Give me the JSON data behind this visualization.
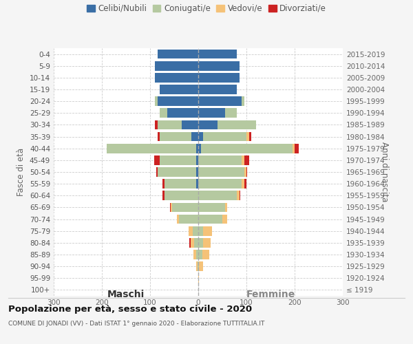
{
  "age_groups": [
    "0-4",
    "5-9",
    "10-14",
    "15-19",
    "20-24",
    "25-29",
    "30-34",
    "35-39",
    "40-44",
    "45-49",
    "50-54",
    "55-59",
    "60-64",
    "65-69",
    "70-74",
    "75-79",
    "80-84",
    "85-89",
    "90-94",
    "95-99",
    "100+"
  ],
  "birth_years": [
    "2015-2019",
    "2010-2014",
    "2005-2009",
    "2000-2004",
    "1995-1999",
    "1990-1994",
    "1985-1989",
    "1980-1984",
    "1975-1979",
    "1970-1974",
    "1965-1969",
    "1960-1964",
    "1955-1959",
    "1950-1954",
    "1945-1949",
    "1940-1944",
    "1935-1939",
    "1930-1934",
    "1925-1929",
    "1920-1924",
    "≤ 1919"
  ],
  "maschi": {
    "celibi": [
      85,
      90,
      90,
      80,
      85,
      65,
      35,
      15,
      5,
      5,
      5,
      5,
      0,
      0,
      0,
      0,
      0,
      0,
      0,
      0,
      0
    ],
    "coniugati": [
      0,
      0,
      0,
      0,
      5,
      15,
      50,
      65,
      185,
      75,
      80,
      65,
      70,
      55,
      40,
      12,
      8,
      5,
      2,
      0,
      0
    ],
    "vedovi": [
      0,
      0,
      0,
      0,
      0,
      0,
      0,
      0,
      0,
      0,
      0,
      0,
      0,
      2,
      5,
      8,
      8,
      5,
      2,
      0,
      0
    ],
    "divorziati": [
      0,
      0,
      0,
      0,
      0,
      0,
      5,
      5,
      0,
      12,
      2,
      5,
      5,
      2,
      0,
      0,
      2,
      0,
      0,
      0,
      0
    ]
  },
  "femmine": {
    "nubili": [
      80,
      85,
      85,
      80,
      90,
      55,
      40,
      10,
      5,
      0,
      0,
      0,
      0,
      0,
      0,
      0,
      0,
      0,
      0,
      0,
      0
    ],
    "coniugate": [
      0,
      0,
      0,
      0,
      5,
      25,
      80,
      90,
      190,
      90,
      95,
      90,
      80,
      55,
      50,
      10,
      10,
      8,
      2,
      0,
      0
    ],
    "vedove": [
      0,
      0,
      0,
      0,
      0,
      0,
      0,
      5,
      5,
      5,
      5,
      5,
      5,
      5,
      10,
      18,
      15,
      15,
      8,
      2,
      0
    ],
    "divorziate": [
      0,
      0,
      0,
      0,
      0,
      0,
      0,
      5,
      8,
      10,
      2,
      5,
      2,
      0,
      0,
      0,
      0,
      0,
      0,
      0,
      0
    ]
  },
  "colors": {
    "celibi": "#3A6EA5",
    "coniugati": "#B5C9A0",
    "vedovi": "#F5C278",
    "divorziati": "#CC2222"
  },
  "xlim": 300,
  "title": "Popolazione per età, sesso e stato civile - 2020",
  "subtitle": "COMUNE DI JONADI (VV) - Dati ISTAT 1° gennaio 2020 - Elaborazione TUTTITALIA.IT",
  "label_maschi": "Maschi",
  "label_femmine": "Femmine",
  "ylabel_left": "Fasce di età",
  "ylabel_right": "Anni di nascita",
  "legend": [
    "Celibi/Nubili",
    "Coniugati/e",
    "Vedovi/e",
    "Divorziati/e"
  ],
  "bg_color": "#f5f5f5",
  "plot_bg_color": "#ffffff"
}
